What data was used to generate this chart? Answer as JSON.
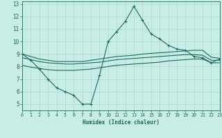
{
  "xlabel": "Humidex (Indice chaleur)",
  "xlim": [
    0,
    23
  ],
  "ylim": [
    4.5,
    13.2
  ],
  "xticks": [
    0,
    1,
    2,
    3,
    4,
    5,
    6,
    7,
    8,
    9,
    10,
    11,
    12,
    13,
    14,
    15,
    16,
    17,
    18,
    19,
    20,
    21,
    22,
    23
  ],
  "yticks": [
    5,
    6,
    7,
    8,
    9,
    10,
    11,
    12,
    13
  ],
  "background_color": "#c8ece6",
  "grid_color": "#a8d8d0",
  "line_color": "#1a6b5a",
  "series": {
    "main": {
      "x": [
        0,
        1,
        2,
        3,
        4,
        5,
        6,
        7,
        8,
        9,
        10,
        11,
        12,
        13,
        14,
        15,
        16,
        17,
        18,
        19,
        20,
        21,
        22,
        23
      ],
      "y": [
        9.0,
        8.5,
        7.8,
        7.0,
        6.3,
        6.0,
        5.7,
        5.0,
        5.0,
        7.3,
        10.0,
        10.8,
        11.6,
        12.8,
        11.7,
        10.6,
        10.2,
        9.7,
        9.4,
        9.3,
        8.8,
        8.7,
        8.3,
        8.6
      ]
    },
    "upper": {
      "x": [
        0,
        1,
        2,
        3,
        4,
        5,
        6,
        7,
        8,
        9,
        10,
        11,
        12,
        13,
        14,
        15,
        16,
        17,
        18,
        19,
        20,
        21,
        22,
        23
      ],
      "y": [
        9.0,
        8.8,
        8.6,
        8.5,
        8.4,
        8.4,
        8.4,
        8.4,
        8.5,
        8.6,
        8.7,
        8.8,
        8.85,
        8.9,
        9.0,
        9.05,
        9.1,
        9.15,
        9.2,
        9.25,
        9.3,
        9.3,
        8.75,
        8.65
      ]
    },
    "middle": {
      "x": [
        0,
        1,
        2,
        3,
        4,
        5,
        6,
        7,
        8,
        9,
        10,
        11,
        12,
        13,
        14,
        15,
        16,
        17,
        18,
        19,
        20,
        21,
        22,
        23
      ],
      "y": [
        8.7,
        8.55,
        8.4,
        8.3,
        8.25,
        8.2,
        8.2,
        8.25,
        8.3,
        8.35,
        8.45,
        8.55,
        8.6,
        8.65,
        8.7,
        8.75,
        8.8,
        8.85,
        8.9,
        8.95,
        8.95,
        8.9,
        8.5,
        8.5
      ]
    },
    "lower": {
      "x": [
        0,
        1,
        2,
        3,
        4,
        5,
        6,
        7,
        8,
        9,
        10,
        11,
        12,
        13,
        14,
        15,
        16,
        17,
        18,
        19,
        20,
        21,
        22,
        23
      ],
      "y": [
        8.1,
        7.95,
        7.85,
        7.75,
        7.7,
        7.7,
        7.7,
        7.75,
        7.8,
        7.9,
        8.0,
        8.1,
        8.15,
        8.2,
        8.25,
        8.3,
        8.35,
        8.45,
        8.5,
        8.55,
        8.6,
        8.6,
        8.3,
        8.3
      ]
    }
  }
}
